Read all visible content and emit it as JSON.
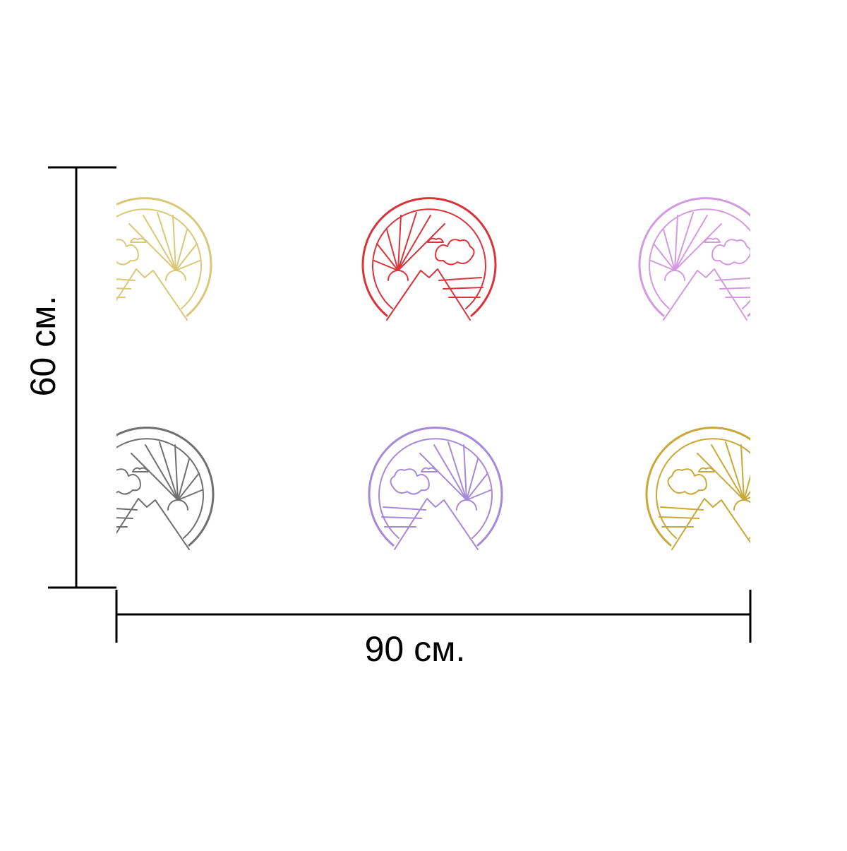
{
  "height_label": "60 см.",
  "width_label": "90 см."
}
